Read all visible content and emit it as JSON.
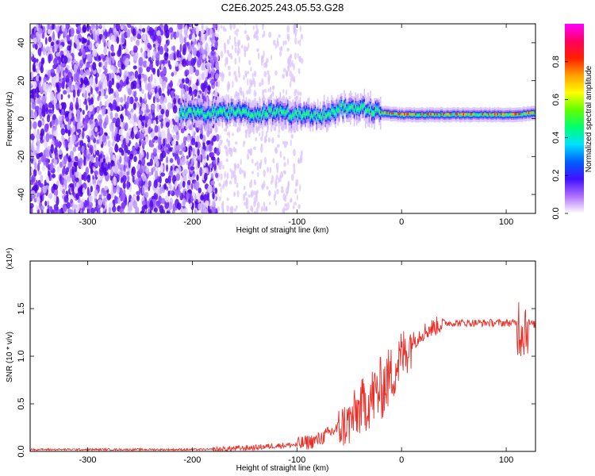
{
  "title": "C2E6.2025.243.05.53.G28",
  "chart_data": [
    {
      "type": "heatmap",
      "name": "spectrogram",
      "xlabel": "Height of straight line (km)",
      "ylabel": "Frequency (Hz)",
      "xlim": [
        -355,
        128
      ],
      "ylim": [
        -50,
        50
      ],
      "xticks": [
        -300,
        -200,
        -100,
        0,
        100
      ],
      "yticks": [
        -40,
        -20,
        0,
        20,
        40
      ],
      "colorbar": {
        "label": "Normalized spectral amplitude",
        "range": [
          0,
          1
        ],
        "ticks": [
          "0.0",
          "0.2",
          "0.4",
          "0.6",
          "0.8"
        ],
        "colors": [
          "#ffffff",
          "#b070ff",
          "#4010ff",
          "#0060ff",
          "#00e0ff",
          "#00ff70",
          "#60ff00",
          "#ffff00",
          "#ffa000",
          "#ff2000",
          "#ff0060",
          "#ff00ff"
        ]
      },
      "band_center_points": [
        {
          "x": -210,
          "freq": 3
        },
        {
          "x": -180,
          "freq": 3
        },
        {
          "x": -160,
          "freq": 4
        },
        {
          "x": -140,
          "freq": 2
        },
        {
          "x": -120,
          "freq": 4
        },
        {
          "x": -100,
          "freq": 2
        },
        {
          "x": -80,
          "freq": 1
        },
        {
          "x": -60,
          "freq": 5
        },
        {
          "x": -40,
          "freq": 6
        },
        {
          "x": -20,
          "freq": 3
        },
        {
          "x": 0,
          "freq": 2
        },
        {
          "x": 40,
          "freq": 2
        },
        {
          "x": 80,
          "freq": 2
        },
        {
          "x": 110,
          "freq": 2
        },
        {
          "x": 128,
          "freq": 3
        }
      ]
    },
    {
      "type": "line",
      "name": "snr",
      "xlabel": "Height of straight line (km)",
      "ylabel": "SNR (10 * v/v)",
      "y_scale_label": "(x10⁴)",
      "xlim": [
        -355,
        128
      ],
      "ylim": [
        0,
        2.0
      ],
      "xticks": [
        -300,
        -200,
        -100,
        0,
        100
      ],
      "yticks": [
        0.0,
        0.5,
        1.0,
        1.5
      ],
      "ytick_labels": [
        "0.0",
        "0.5",
        "1.0",
        "1.5"
      ],
      "color": "#e8302a",
      "series": [
        {
          "name": "SNR",
          "x": [
            -355,
            -300,
            -250,
            -200,
            -175,
            -160,
            -140,
            -120,
            -100,
            -80,
            -60,
            -50,
            -40,
            -30,
            -20,
            -10,
            0,
            10,
            20,
            30,
            40,
            50,
            60,
            70,
            80,
            90,
            100,
            110,
            115,
            120,
            128
          ],
          "y": [
            0.02,
            0.02,
            0.02,
            0.02,
            0.02,
            0.03,
            0.04,
            0.06,
            0.07,
            0.12,
            0.25,
            0.3,
            0.45,
            0.55,
            0.65,
            0.8,
            1.0,
            1.15,
            1.25,
            1.3,
            1.35,
            1.35,
            1.35,
            1.35,
            1.35,
            1.35,
            1.35,
            1.35,
            1.3,
            1.35,
            1.33
          ]
        }
      ]
    }
  ]
}
